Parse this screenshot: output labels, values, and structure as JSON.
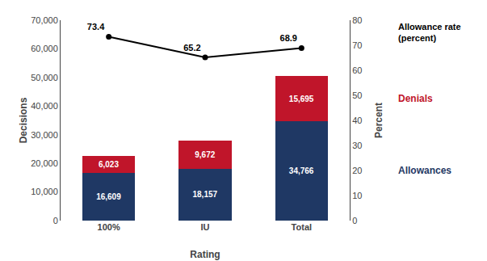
{
  "chart_data": {
    "type": "bar",
    "stacked": true,
    "categories": [
      "100%",
      "IU",
      "Total"
    ],
    "xlabel": "Rating",
    "ylabel": "Decisions",
    "y2label": "Percent",
    "series": [
      {
        "name": "Allowances",
        "color": "#1F3864",
        "values": [
          16609,
          18157,
          34766
        ],
        "value_labels": [
          "16,609",
          "18,157",
          "34,766"
        ]
      },
      {
        "name": "Denials",
        "color": "#C0152A",
        "values": [
          6023,
          9672,
          15695
        ],
        "value_labels": [
          "6,023",
          "9,672",
          "15,695"
        ]
      },
      {
        "name": "Allowance rate\n(percent)",
        "type": "line",
        "axis": "y2",
        "color": "#000000",
        "marker": "circle",
        "values": [
          73.4,
          65.2,
          68.9
        ]
      }
    ],
    "ylim": [
      0,
      70000
    ],
    "yticks": [
      0,
      {
        "value": 10000,
        "label": "10,000"
      },
      {
        "value": 20000,
        "label": "20,000"
      },
      {
        "value": 30000,
        "label": "30,000"
      },
      {
        "value": 40000,
        "label": "40,000"
      },
      {
        "value": 50000,
        "label": "50,000"
      },
      {
        "value": 60000,
        "label": "60,000"
      },
      {
        "value": 70000,
        "label": "70,000"
      }
    ],
    "y2lim": [
      0,
      80
    ],
    "y2ticks": [
      0,
      10,
      20,
      30,
      40,
      50,
      60,
      70,
      80
    ],
    "data_labels": true,
    "grid": false
  }
}
